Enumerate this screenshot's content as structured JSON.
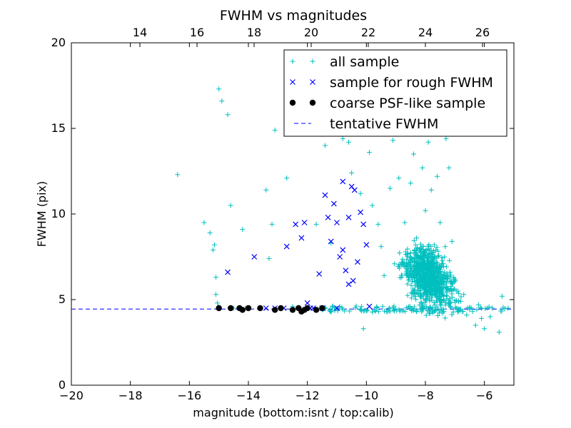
{
  "chart_data": {
    "type": "scatter",
    "title": "FWHM vs magnitudes",
    "xlabel": "magnitude (bottom:isnt / top:calib)",
    "ylabel": "FWHM (pix)",
    "xlim": [
      -20,
      -5
    ],
    "ylim": [
      0,
      20
    ],
    "top_xlim": [
      11.6,
      27.1
    ],
    "bottom_xticks": [
      "−20",
      "−18",
      "−16",
      "−14",
      "−12",
      "−10",
      "−8",
      "−6"
    ],
    "bottom_xtick_values": [
      -20,
      -18,
      -16,
      -14,
      -12,
      -10,
      -8,
      -6
    ],
    "top_xticks": [
      "14",
      "16",
      "18",
      "20",
      "22",
      "24",
      "26"
    ],
    "top_xtick_values": [
      14,
      16,
      18,
      20,
      22,
      24,
      26
    ],
    "yticks": [
      "0",
      "5",
      "10",
      "15",
      "20"
    ],
    "ytick_values": [
      0,
      5,
      10,
      15,
      20
    ],
    "grid": false,
    "legend_position": "top-right",
    "legend": [
      {
        "label": "all sample",
        "marker": "plus",
        "color": "#00bfbf"
      },
      {
        "label": "sample for rough FWHM",
        "marker": "x",
        "color": "#0000ff"
      },
      {
        "label": "coarse PSF-like sample",
        "marker": "dot",
        "color": "#000000"
      },
      {
        "label": "tentative FWHM",
        "marker": "dash",
        "color": "#0000ff"
      }
    ],
    "series": [
      {
        "name": "all sample",
        "marker": "plus",
        "color": "#00bfbf",
        "points": [
          [
            -16.4,
            12.3
          ],
          [
            -15.5,
            9.5
          ],
          [
            -15.3,
            8.9
          ],
          [
            -15.2,
            7.9
          ],
          [
            -15.15,
            8.2
          ],
          [
            -15.1,
            6.3
          ],
          [
            -15.1,
            5.3
          ],
          [
            -15.05,
            4.8
          ],
          [
            -15.0,
            4.6
          ],
          [
            -14.9,
            16.6
          ],
          [
            -14.7,
            15.8
          ],
          [
            -14.6,
            10.5
          ],
          [
            -14.5,
            4.5
          ],
          [
            -14.2,
            9.1
          ],
          [
            -14.1,
            4.5
          ],
          [
            -13.6,
            4.5
          ],
          [
            -13.4,
            11.4
          ],
          [
            -13.3,
            7.4
          ],
          [
            -13.2,
            9.4
          ],
          [
            -13.1,
            14.9
          ],
          [
            -12.7,
            12.1
          ],
          [
            -12.5,
            4.6
          ],
          [
            -12.0,
            4.5
          ],
          [
            -11.7,
            9.4
          ],
          [
            -11.4,
            4.5
          ],
          [
            -11.5,
            15.4
          ],
          [
            -11.4,
            14.0
          ],
          [
            -11.2,
            8.3
          ],
          [
            -11.0,
            4.5
          ],
          [
            -10.9,
            4.6
          ],
          [
            -10.8,
            14.4
          ],
          [
            -10.6,
            14.2
          ],
          [
            -10.5,
            12.4
          ],
          [
            -10.2,
            11.2
          ],
          [
            -10.1,
            3.3
          ],
          [
            -9.9,
            13.6
          ],
          [
            -9.8,
            10.5
          ],
          [
            -9.6,
            9.4
          ],
          [
            -9.5,
            8.1
          ],
          [
            -9.4,
            6.4
          ],
          [
            -9.2,
            11.5
          ],
          [
            -9.1,
            14.3
          ],
          [
            -9.0,
            14.9
          ],
          [
            -8.9,
            12.1
          ],
          [
            -8.8,
            7.2
          ],
          [
            -8.7,
            9.5
          ],
          [
            -8.6,
            15.5
          ],
          [
            -8.5,
            11.8
          ],
          [
            -8.4,
            13.5
          ],
          [
            -8.3,
            8.6
          ],
          [
            -8.2,
            6.4
          ],
          [
            -8.1,
            12.7
          ],
          [
            -8.0,
            10.2
          ],
          [
            -7.9,
            14.2
          ],
          [
            -7.8,
            11.4
          ],
          [
            -7.7,
            8.2
          ],
          [
            -7.6,
            12.2
          ],
          [
            -7.5,
            9.5
          ],
          [
            -7.4,
            7.1
          ],
          [
            -7.3,
            14.4
          ],
          [
            -7.2,
            12.7
          ],
          [
            -7.1,
            8.4
          ],
          [
            -7.0,
            6.2
          ],
          [
            -6.9,
            5.5
          ],
          [
            -6.8,
            4.9
          ],
          [
            -6.7,
            5.3
          ],
          [
            -6.6,
            4.1
          ],
          [
            -6.5,
            4.5
          ],
          [
            -6.4,
            4.3
          ],
          [
            -6.3,
            3.5
          ],
          [
            -6.2,
            4.7
          ],
          [
            -6.1,
            3.9
          ],
          [
            -6.0,
            3.3
          ],
          [
            -5.9,
            4.5
          ],
          [
            -5.8,
            4.0
          ],
          [
            -5.5,
            3.1
          ],
          [
            -5.4,
            5.2
          ],
          [
            -5.2,
            4.5
          ],
          [
            -15.0,
            17.3
          ]
        ]
      },
      {
        "name": "sample for rough FWHM",
        "marker": "x",
        "color": "#0000ff",
        "points": [
          [
            -14.7,
            6.6
          ],
          [
            -13.8,
            7.5
          ],
          [
            -12.7,
            8.1
          ],
          [
            -12.4,
            9.4
          ],
          [
            -12.2,
            8.6
          ],
          [
            -12.1,
            9.5
          ],
          [
            -12.0,
            4.8
          ],
          [
            -11.9,
            4.5
          ],
          [
            -11.6,
            6.5
          ],
          [
            -11.4,
            11.1
          ],
          [
            -11.3,
            9.8
          ],
          [
            -11.2,
            8.4
          ],
          [
            -11.1,
            10.6
          ],
          [
            -11.0,
            4.5
          ],
          [
            -10.9,
            7.5
          ],
          [
            -10.8,
            11.9
          ],
          [
            -10.8,
            7.9
          ],
          [
            -10.7,
            6.7
          ],
          [
            -10.6,
            9.8
          ],
          [
            -10.5,
            11.6
          ],
          [
            -10.4,
            11.4
          ],
          [
            -10.3,
            7.2
          ],
          [
            -10.2,
            10.1
          ],
          [
            -10.1,
            9.4
          ],
          [
            -10.0,
            8.2
          ],
          [
            -9.9,
            4.6
          ],
          [
            -11.5,
            4.5
          ],
          [
            -10.6,
            5.9
          ],
          [
            -10.45,
            6.1
          ],
          [
            -11.0,
            9.5
          ],
          [
            -12.8,
            4.5
          ],
          [
            -13.1,
            4.5
          ],
          [
            -13.4,
            4.5
          ],
          [
            -11.8,
            4.5
          ]
        ]
      },
      {
        "name": "coarse PSF-like sample",
        "marker": "dot",
        "color": "#000000",
        "points": [
          [
            -15.0,
            4.5
          ],
          [
            -14.6,
            4.5
          ],
          [
            -14.3,
            4.5
          ],
          [
            -14.2,
            4.4
          ],
          [
            -14.0,
            4.5
          ],
          [
            -13.6,
            4.5
          ],
          [
            -13.1,
            4.4
          ],
          [
            -12.9,
            4.5
          ],
          [
            -12.5,
            4.4
          ],
          [
            -12.3,
            4.5
          ],
          [
            -12.2,
            4.3
          ],
          [
            -12.1,
            4.4
          ],
          [
            -12.0,
            4.5
          ],
          [
            -11.7,
            4.4
          ],
          [
            -11.5,
            4.5
          ]
        ]
      }
    ],
    "reference_line": {
      "name": "tentative FWHM",
      "y": 4.45,
      "style": "dashed",
      "color": "#0000ff"
    }
  }
}
